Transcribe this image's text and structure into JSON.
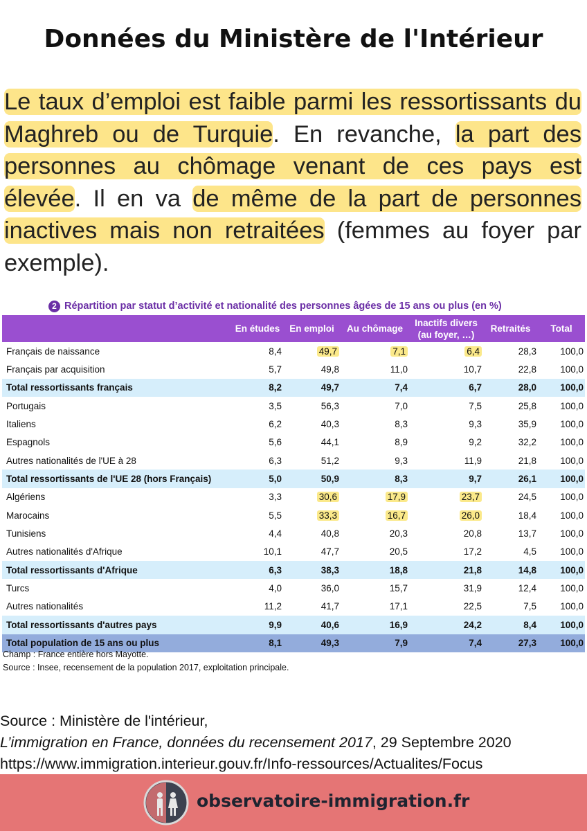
{
  "header": {
    "title": "Données du Ministère de l'Intérieur"
  },
  "paragraph": [
    {
      "text": "Le taux d’emploi est faible parmi les ressortissants du Maghreb ou de Turquie",
      "highlight": true
    },
    {
      "text": ". En revanche, ",
      "highlight": false
    },
    {
      "text": "la part des personnes au chômage venant de ces pays est élevée",
      "highlight": true
    },
    {
      "text": ". Il en va ",
      "highlight": false
    },
    {
      "text": "de même de la part de personnes inactives mais non retraitées",
      "highlight": true
    },
    {
      "text": " (femmes au foyer par exemple).",
      "highlight": false
    }
  ],
  "table": {
    "number": "2",
    "title": "Répartition par statut d’activité et nationalité des personnes âgées de 15 ans ou plus (en %)",
    "columns": [
      "",
      "En études",
      "En emploi",
      "Au chômage",
      "Inactifs divers\n(au foyer, …)",
      "Retraités",
      "Total"
    ],
    "rows": [
      {
        "cells": [
          "Français de naissance",
          "8,4",
          "49,7",
          "7,1",
          "6,4",
          "28,3",
          "100,0"
        ],
        "kind": "normal",
        "highlight_cols": [
          2,
          3,
          4
        ]
      },
      {
        "cells": [
          "Français par acquisition",
          "5,7",
          "49,8",
          "11,0",
          "10,7",
          "22,8",
          "100,0"
        ],
        "kind": "normal",
        "highlight_cols": []
      },
      {
        "cells": [
          "Total ressortissants français",
          "8,2",
          "49,7",
          "7,4",
          "6,7",
          "28,0",
          "100,0"
        ],
        "kind": "total",
        "highlight_cols": []
      },
      {
        "cells": [
          "Portugais",
          "3,5",
          "56,3",
          "7,0",
          "7,5",
          "25,8",
          "100,0"
        ],
        "kind": "normal",
        "highlight_cols": []
      },
      {
        "cells": [
          "Italiens",
          "6,2",
          "40,3",
          "8,3",
          "9,3",
          "35,9",
          "100,0"
        ],
        "kind": "normal",
        "highlight_cols": []
      },
      {
        "cells": [
          "Espagnols",
          "5,6",
          "44,1",
          "8,9",
          "9,2",
          "32,2",
          "100,0"
        ],
        "kind": "normal",
        "highlight_cols": []
      },
      {
        "cells": [
          "Autres nationalités de l'UE à 28",
          "6,3",
          "51,2",
          "9,3",
          "11,9",
          "21,8",
          "100,0"
        ],
        "kind": "normal",
        "highlight_cols": []
      },
      {
        "cells": [
          "Total ressortissants de l'UE 28 (hors Français)",
          "5,0",
          "50,9",
          "8,3",
          "9,7",
          "26,1",
          "100,0"
        ],
        "kind": "total",
        "highlight_cols": []
      },
      {
        "cells": [
          "Algériens",
          "3,3",
          "30,6",
          "17,9",
          "23,7",
          "24,5",
          "100,0"
        ],
        "kind": "normal",
        "highlight_cols": [
          2,
          3,
          4
        ]
      },
      {
        "cells": [
          "Marocains",
          "5,5",
          "33,3",
          "16,7",
          "26,0",
          "18,4",
          "100,0"
        ],
        "kind": "normal",
        "highlight_cols": [
          2,
          3,
          4
        ]
      },
      {
        "cells": [
          "Tunisiens",
          "4,4",
          "40,8",
          "20,3",
          "20,8",
          "13,7",
          "100,0"
        ],
        "kind": "normal",
        "highlight_cols": []
      },
      {
        "cells": [
          "Autres nationalités d'Afrique",
          "10,1",
          "47,7",
          "20,5",
          "17,2",
          "4,5",
          "100,0"
        ],
        "kind": "normal",
        "highlight_cols": []
      },
      {
        "cells": [
          "Total ressortissants d'Afrique",
          "6,3",
          "38,3",
          "18,8",
          "21,8",
          "14,8",
          "100,0"
        ],
        "kind": "total",
        "highlight_cols": []
      },
      {
        "cells": [
          "Turcs",
          "4,0",
          "36,0",
          "15,7",
          "31,9",
          "12,4",
          "100,0"
        ],
        "kind": "normal",
        "highlight_cols": []
      },
      {
        "cells": [
          "Autres nationalités",
          "11,2",
          "41,7",
          "17,1",
          "22,5",
          "7,5",
          "100,0"
        ],
        "kind": "normal",
        "highlight_cols": []
      },
      {
        "cells": [
          "Total ressortissants d'autres pays",
          "9,9",
          "40,6",
          "16,9",
          "24,2",
          "8,4",
          "100,0"
        ],
        "kind": "total",
        "highlight_cols": []
      },
      {
        "cells": [
          "Total population de 15 ans ou plus",
          "8,1",
          "49,3",
          "7,9",
          "7,4",
          "27,3",
          "100,0"
        ],
        "kind": "grand",
        "highlight_cols": []
      }
    ],
    "notes": [
      "Champ : France entière hors Mayotte.",
      "Source : Insee, recensement de la population 2017, exploitation principale."
    ]
  },
  "source": {
    "line1": "Source : Ministère de l'intérieur,",
    "line2_italic": "L’immigration en France, données du recensement 2017",
    "line2_rest": ", 29 Septembre 2020",
    "line3": "https://www.immigration.interieur.gouv.fr/Info-ressources/Actualites/Focus"
  },
  "footer": {
    "site": "observatoire-immigration.fr"
  }
}
